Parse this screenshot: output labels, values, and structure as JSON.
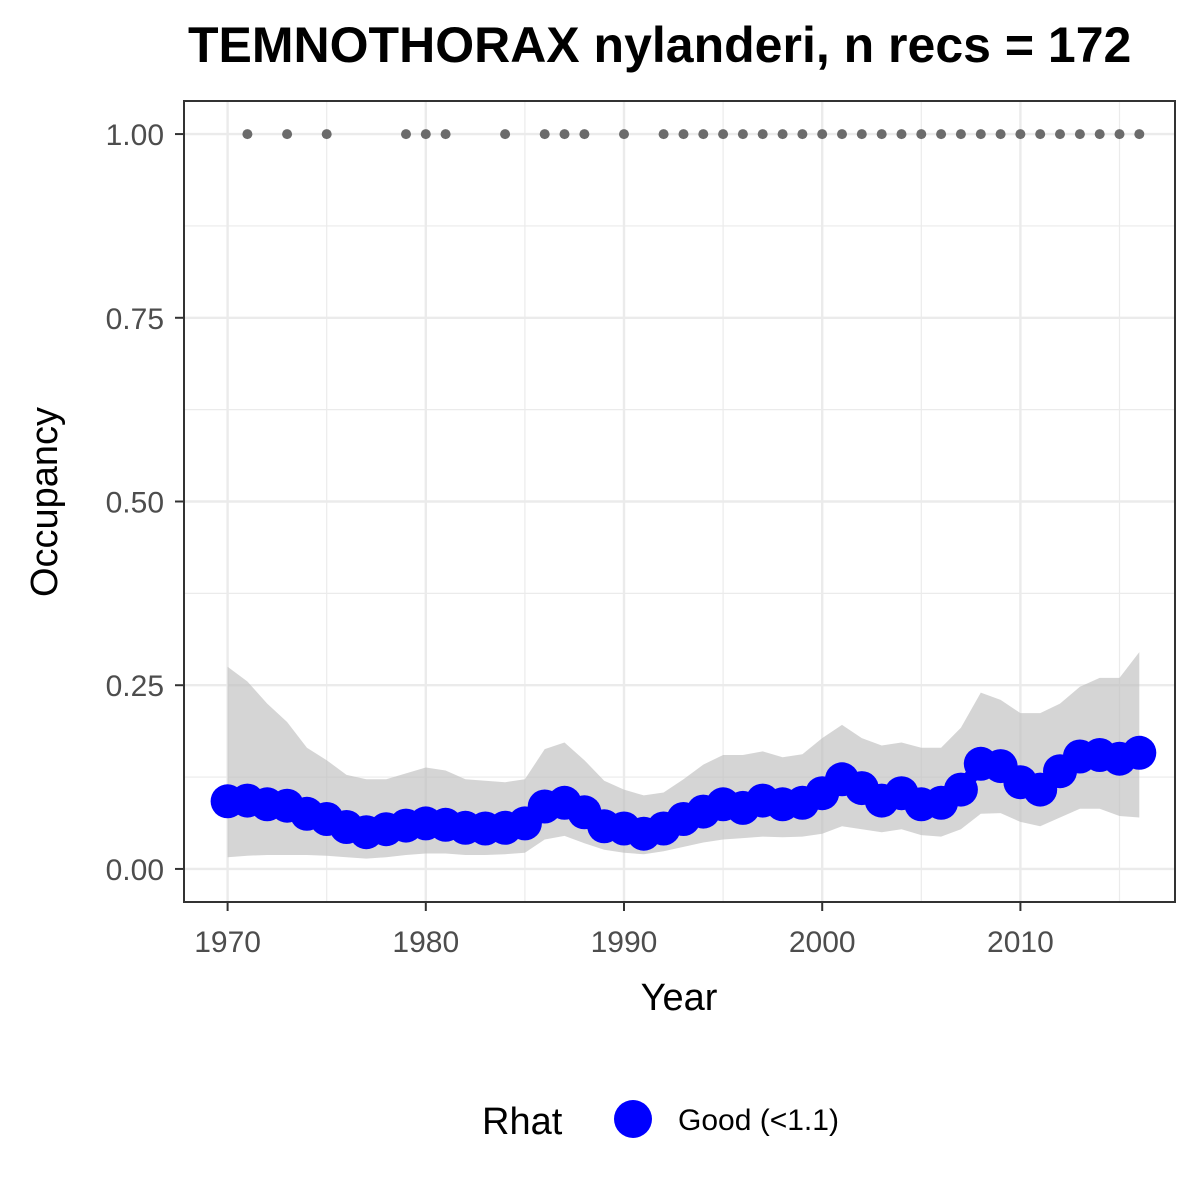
{
  "chart_data": {
    "type": "line",
    "title": "TEMNOTHORAX nylanderi, n recs = 172",
    "xlabel": "Year",
    "ylabel": "Occupancy",
    "xlim": [
      1967.8,
      2017.8
    ],
    "ylim": [
      -0.045,
      1.045
    ],
    "x_ticks": [
      1970,
      1980,
      1990,
      2000,
      2010
    ],
    "x_tick_labels": [
      "1970",
      "1980",
      "1990",
      "2000",
      "2010"
    ],
    "y_ticks": [
      0,
      0.25,
      0.5,
      0.75,
      1
    ],
    "y_tick_labels": [
      "0.00",
      "0.25",
      "0.50",
      "0.75",
      "1.00"
    ],
    "grid": true,
    "legend": {
      "position": "bottom",
      "title": "Rhat",
      "entries": [
        {
          "label": "Good (<1.1)",
          "color": "#0000ff"
        }
      ]
    },
    "colors": {
      "series": "#0000ff",
      "ribbon": "#bebebe",
      "records": "#6b6b6b",
      "grid": "#ebebeb",
      "frame": "#333333"
    },
    "series": [
      {
        "name": "Good (<1.1)",
        "x": [
          1970,
          1971,
          1972,
          1973,
          1974,
          1975,
          1976,
          1977,
          1978,
          1979,
          1980,
          1981,
          1982,
          1983,
          1984,
          1985,
          1986,
          1987,
          1988,
          1989,
          1990,
          1991,
          1992,
          1993,
          1994,
          1995,
          1996,
          1997,
          1998,
          1999,
          2000,
          2001,
          2002,
          2003,
          2004,
          2005,
          2006,
          2007,
          2008,
          2009,
          2010,
          2011,
          2012,
          2013,
          2014,
          2015,
          2016
        ],
        "values": [
          0.092,
          0.093,
          0.088,
          0.086,
          0.075,
          0.068,
          0.057,
          0.05,
          0.054,
          0.059,
          0.062,
          0.06,
          0.056,
          0.055,
          0.056,
          0.062,
          0.085,
          0.09,
          0.077,
          0.058,
          0.055,
          0.048,
          0.055,
          0.068,
          0.078,
          0.088,
          0.083,
          0.093,
          0.088,
          0.09,
          0.103,
          0.122,
          0.11,
          0.093,
          0.103,
          0.088,
          0.09,
          0.108,
          0.143,
          0.14,
          0.118,
          0.108,
          0.133,
          0.153,
          0.155,
          0.15,
          0.158
        ],
        "lower": [
          0.016,
          0.018,
          0.019,
          0.019,
          0.019,
          0.018,
          0.016,
          0.014,
          0.016,
          0.019,
          0.021,
          0.021,
          0.019,
          0.019,
          0.02,
          0.022,
          0.04,
          0.045,
          0.035,
          0.026,
          0.022,
          0.02,
          0.024,
          0.03,
          0.036,
          0.04,
          0.042,
          0.044,
          0.043,
          0.044,
          0.048,
          0.058,
          0.054,
          0.05,
          0.054,
          0.046,
          0.044,
          0.054,
          0.075,
          0.076,
          0.064,
          0.058,
          0.07,
          0.082,
          0.082,
          0.072,
          0.07
        ],
        "upper": [
          0.275,
          0.255,
          0.225,
          0.2,
          0.165,
          0.148,
          0.128,
          0.122,
          0.122,
          0.13,
          0.138,
          0.134,
          0.122,
          0.12,
          0.118,
          0.122,
          0.163,
          0.172,
          0.148,
          0.12,
          0.108,
          0.1,
          0.104,
          0.122,
          0.142,
          0.155,
          0.155,
          0.16,
          0.152,
          0.156,
          0.178,
          0.196,
          0.178,
          0.168,
          0.172,
          0.165,
          0.165,
          0.192,
          0.24,
          0.23,
          0.212,
          0.212,
          0.225,
          0.248,
          0.26,
          0.26,
          0.295
        ]
      }
    ],
    "records": {
      "x": [
        1971,
        1973,
        1975,
        1979,
        1980,
        1981,
        1984,
        1986,
        1987,
        1988,
        1990,
        1992,
        1993,
        1994,
        1995,
        1996,
        1997,
        1998,
        1999,
        2000,
        2001,
        2002,
        2003,
        2004,
        2005,
        2006,
        2007,
        2008,
        2009,
        2010,
        2011,
        2012,
        2013,
        2014,
        2015,
        2016
      ],
      "y": 1.0
    }
  }
}
